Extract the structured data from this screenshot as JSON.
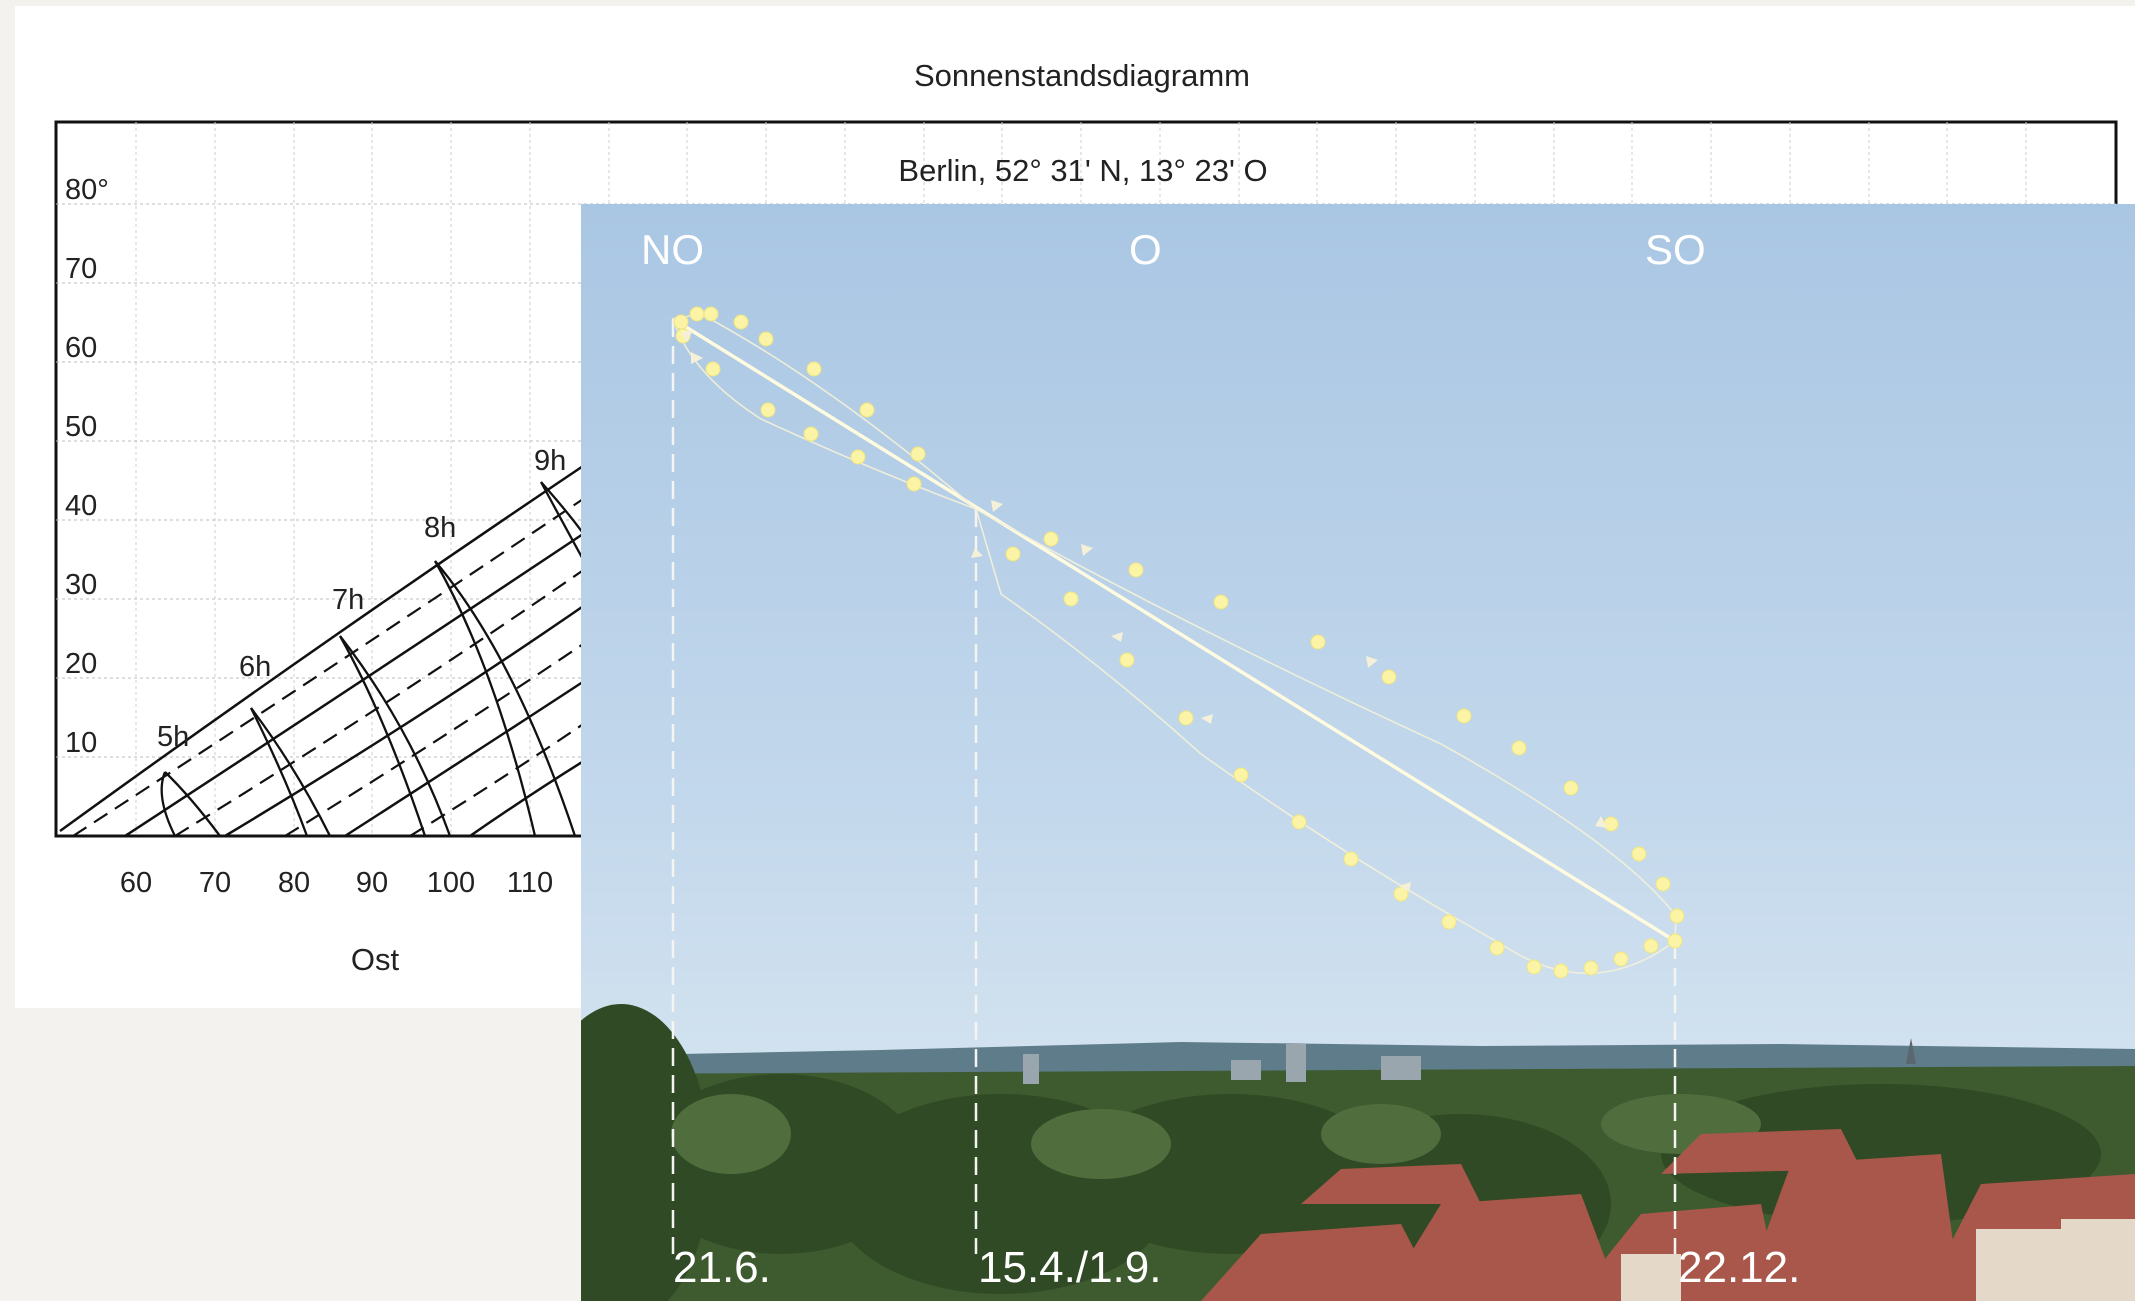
{
  "chart": {
    "title": "Sonnenstandsdiagramm",
    "location": "Berlin, 52° 31' N, 13° 23' O",
    "y_ticks": [
      "80°",
      "70",
      "60",
      "50",
      "40",
      "30",
      "20",
      "10"
    ],
    "x_ticks": [
      "60",
      "70",
      "80",
      "90",
      "100",
      "110"
    ],
    "x_axis_label": "Ost",
    "hour_labels": [
      "5h",
      "6h",
      "7h",
      "8h",
      "9h"
    ]
  },
  "photo": {
    "directions": [
      "NO",
      "O",
      "SO"
    ],
    "dates": [
      "21.6.",
      "15.4./1.9.",
      "22.12."
    ]
  },
  "colors": {
    "sky_top": "#a9c6e3",
    "sky_bottom": "#cfe0ef",
    "sun_dot": "#fbf3a6",
    "line": "#fffbe0",
    "trees": "#2f4a24",
    "roofs": "#a8574a"
  }
}
